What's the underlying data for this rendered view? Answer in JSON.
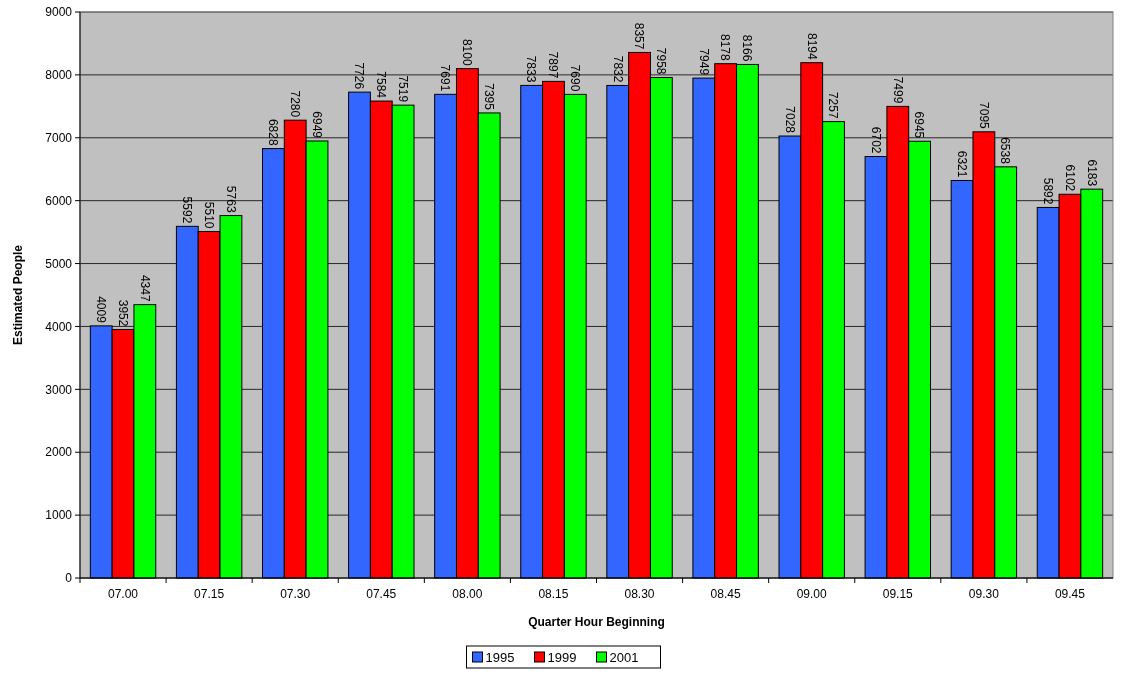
{
  "chart_data": {
    "type": "bar",
    "xlabel": "Quarter Hour Beginning",
    "ylabel": "Estimated People",
    "categories": [
      "07.00",
      "07.15",
      "07.30",
      "07.45",
      "08.00",
      "08.15",
      "08.30",
      "08.45",
      "09.00",
      "09.15",
      "09.30",
      "09.45"
    ],
    "series": [
      {
        "name": "1995",
        "color": "#3366ff",
        "values": [
          4009,
          5592,
          6828,
          7726,
          7691,
          7833,
          7832,
          7949,
          7028,
          6702,
          6321,
          5892
        ]
      },
      {
        "name": "1999",
        "color": "#ff0000",
        "values": [
          3952,
          5510,
          7280,
          7584,
          8100,
          7897,
          8357,
          8178,
          8194,
          7499,
          7095,
          6102
        ]
      },
      {
        "name": "2001",
        "color": "#00ff00",
        "values": [
          4347,
          5763,
          6949,
          7519,
          7395,
          7690,
          7958,
          8166,
          7257,
          6945,
          6538,
          6183
        ]
      }
    ],
    "ylim": [
      0,
      9000
    ],
    "yticks": [
      0,
      1000,
      2000,
      3000,
      4000,
      5000,
      6000,
      7000,
      8000,
      9000
    ],
    "grid": "y",
    "legend": "bottom",
    "data_labels": true
  }
}
